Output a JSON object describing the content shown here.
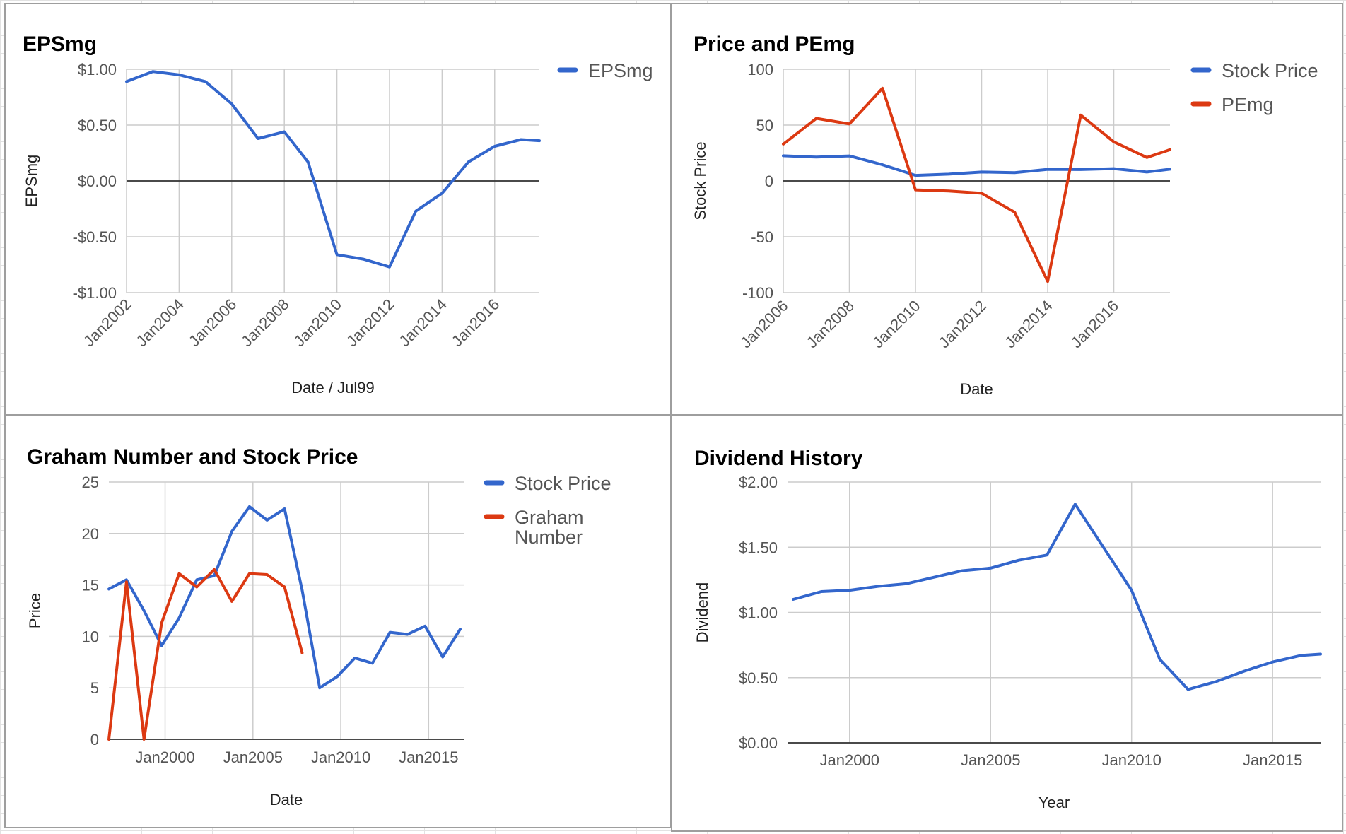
{
  "colors": {
    "blue": "#3366cc",
    "red": "#dc3912",
    "grid": "#cccccc",
    "baseline": "#333333"
  },
  "chart_data": [
    {
      "id": "eps",
      "type": "line",
      "title": "EPSmg",
      "xlabel": "Date / Jul99",
      "ylabel": "EPSmg",
      "x_ticks": [
        "Jan2002",
        "Jan2004",
        "Jan2006",
        "Jan2008",
        "Jan2010",
        "Jan2012",
        "Jan2014",
        "Jan2016"
      ],
      "y_ticks": [
        "$1.00",
        "$0.50",
        "$0.00",
        "-$0.50",
        "-$1.00"
      ],
      "ylim": [
        -1.0,
        1.0
      ],
      "xlim": [
        2002.0,
        2017.7
      ],
      "x_tick_rotation": -45,
      "grid": true,
      "legend_position": "right",
      "series": [
        {
          "name": "EPSmg",
          "color": "#3366cc",
          "points": [
            [
              2002.0,
              0.89
            ],
            [
              2003.0,
              0.98
            ],
            [
              2004.0,
              0.95
            ],
            [
              2005.0,
              0.89
            ],
            [
              2006.0,
              0.69
            ],
            [
              2007.0,
              0.38
            ],
            [
              2008.0,
              0.44
            ],
            [
              2008.9,
              0.17
            ],
            [
              2010.0,
              -0.66
            ],
            [
              2011.0,
              -0.7
            ],
            [
              2012.0,
              -0.77
            ],
            [
              2013.0,
              -0.27
            ],
            [
              2014.0,
              -0.11
            ],
            [
              2015.0,
              0.17
            ],
            [
              2016.0,
              0.31
            ],
            [
              2017.0,
              0.37
            ],
            [
              2017.7,
              0.36
            ]
          ]
        }
      ]
    },
    {
      "id": "pe",
      "type": "line",
      "title": "Price and PEmg",
      "xlabel": "Date",
      "ylabel": "Stock Price",
      "x_ticks": [
        "Jan2006",
        "Jan2008",
        "Jan2010",
        "Jan2012",
        "Jan2014",
        "Jan2016"
      ],
      "y_ticks": [
        "100",
        "50",
        "0",
        "-50",
        "-100"
      ],
      "ylim": [
        -100,
        100
      ],
      "xlim": [
        2006.0,
        2017.7
      ],
      "x_tick_rotation": -45,
      "grid": true,
      "legend_position": "right",
      "series": [
        {
          "name": "Stock Price",
          "color": "#3366cc",
          "points": [
            [
              2006.0,
              22.5
            ],
            [
              2007.0,
              21.3
            ],
            [
              2008.0,
              22.4
            ],
            [
              2009.0,
              14.5
            ],
            [
              2010.0,
              5.0
            ],
            [
              2011.0,
              6.1
            ],
            [
              2012.0,
              8.0
            ],
            [
              2013.0,
              7.5
            ],
            [
              2014.0,
              10.4
            ],
            [
              2015.0,
              10.2
            ],
            [
              2016.0,
              11.0
            ],
            [
              2017.0,
              8.0
            ],
            [
              2017.7,
              10.5
            ]
          ]
        },
        {
          "name": "PEmg",
          "color": "#dc3912",
          "points": [
            [
              2006.0,
              33
            ],
            [
              2007.0,
              56
            ],
            [
              2008.0,
              51
            ],
            [
              2009.0,
              83
            ],
            [
              2010.0,
              -8
            ],
            [
              2011.0,
              -9
            ],
            [
              2012.0,
              -11
            ],
            [
              2013.0,
              -28
            ],
            [
              2014.0,
              -90
            ],
            [
              2015.0,
              59
            ],
            [
              2016.0,
              35
            ],
            [
              2017.0,
              21
            ],
            [
              2017.7,
              28
            ]
          ]
        }
      ]
    },
    {
      "id": "graham",
      "type": "line",
      "title": "Graham Number and Stock Price",
      "xlabel": "Date",
      "ylabel": "Price",
      "x_ticks": [
        "Jan2000",
        "Jan2005",
        "Jan2010",
        "Jan2015"
      ],
      "y_ticks": [
        "25",
        "20",
        "15",
        "10",
        "5",
        "0"
      ],
      "ylim": [
        0,
        25
      ],
      "xlim": [
        1996.8,
        2017.0
      ],
      "grid": true,
      "legend_position": "right",
      "series": [
        {
          "name": "Stock Price",
          "color": "#3366cc",
          "points": [
            [
              1996.8,
              14.6
            ],
            [
              1997.8,
              15.5
            ],
            [
              1998.8,
              12.5
            ],
            [
              1999.8,
              9.1
            ],
            [
              2000.8,
              11.8
            ],
            [
              2001.8,
              15.5
            ],
            [
              2002.8,
              15.9
            ],
            [
              2003.8,
              20.2
            ],
            [
              2004.8,
              22.6
            ],
            [
              2005.8,
              21.3
            ],
            [
              2006.8,
              22.4
            ],
            [
              2007.8,
              14.5
            ],
            [
              2008.8,
              5.0
            ],
            [
              2009.8,
              6.1
            ],
            [
              2010.8,
              7.9
            ],
            [
              2011.8,
              7.4
            ],
            [
              2012.8,
              10.4
            ],
            [
              2013.8,
              10.2
            ],
            [
              2014.8,
              11.0
            ],
            [
              2015.8,
              8.0
            ],
            [
              2016.8,
              10.7
            ]
          ]
        },
        {
          "name": "Graham Number",
          "color": "#dc3912",
          "points": [
            [
              1996.8,
              0
            ],
            [
              1997.8,
              15.3
            ],
            [
              1998.8,
              0
            ],
            [
              1999.8,
              11.3
            ],
            [
              2000.8,
              16.1
            ],
            [
              2001.8,
              14.8
            ],
            [
              2002.8,
              16.5
            ],
            [
              2003.8,
              13.4
            ],
            [
              2004.8,
              16.1
            ],
            [
              2005.8,
              16.0
            ],
            [
              2006.8,
              14.8
            ],
            [
              2007.8,
              8.4
            ]
          ]
        }
      ]
    },
    {
      "id": "dividend",
      "type": "line",
      "title": "Dividend History",
      "xlabel": "Year",
      "ylabel": "Dividend",
      "x_ticks": [
        "Jan2000",
        "Jan2005",
        "Jan2010",
        "Jan2015"
      ],
      "y_ticks": [
        "$2.00",
        "$1.50",
        "$1.00",
        "$0.50",
        "$0.00"
      ],
      "ylim": [
        0,
        2.0
      ],
      "xlim": [
        1997.8,
        2016.7
      ],
      "grid": true,
      "legend_position": "none",
      "series": [
        {
          "name": "",
          "color": "#3366cc",
          "points": [
            [
              1998.0,
              1.1
            ],
            [
              1999.0,
              1.16
            ],
            [
              2000.0,
              1.17
            ],
            [
              2001.0,
              1.2
            ],
            [
              2002.0,
              1.22
            ],
            [
              2003.0,
              1.27
            ],
            [
              2004.0,
              1.32
            ],
            [
              2005.0,
              1.34
            ],
            [
              2006.0,
              1.4
            ],
            [
              2007.0,
              1.44
            ],
            [
              2008.0,
              1.83
            ],
            [
              2009.0,
              1.5
            ],
            [
              2010.0,
              1.17
            ],
            [
              2011.0,
              0.64
            ],
            [
              2012.0,
              0.41
            ],
            [
              2013.0,
              0.47
            ],
            [
              2014.0,
              0.55
            ],
            [
              2015.0,
              0.62
            ],
            [
              2016.0,
              0.67
            ],
            [
              2016.7,
              0.68
            ]
          ]
        }
      ]
    }
  ]
}
